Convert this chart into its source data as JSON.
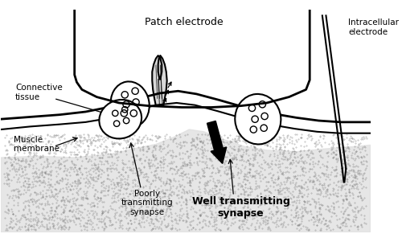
{
  "title": "",
  "background_color": "#ffffff",
  "line_color": "#000000",
  "labels": {
    "patch_electrode": "Patch electrode",
    "intracellular_electrode": "Intracellular\nelectrode",
    "connective_tissue": "Connective\ntissue",
    "muscle_membrane": "Muscle\nmembrane",
    "poorly_transmitting": "Poorly\ntransmitting\nsynapse",
    "well_transmitting": "Well transmitting\nsynapse"
  },
  "figsize": [
    5.0,
    3.01
  ],
  "dpi": 100
}
